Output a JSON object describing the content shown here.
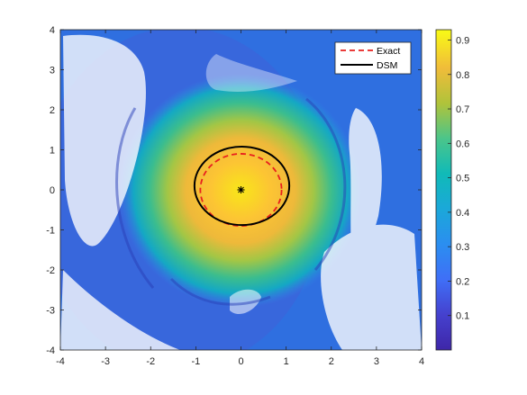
{
  "chart_data": {
    "type": "heatmap",
    "title": "",
    "xlabel": "",
    "ylabel": "",
    "xlim": [
      -4,
      4
    ],
    "ylim": [
      -4,
      4
    ],
    "x_ticks": [
      -4,
      -3,
      -2,
      -1,
      0,
      1,
      2,
      3,
      4
    ],
    "y_ticks": [
      -4,
      -3,
      -2,
      -1,
      0,
      1,
      2,
      3,
      4
    ],
    "grid": false,
    "colormap": "parula",
    "colorbar": {
      "range": [
        0,
        0.93
      ],
      "ticks": [
        0.1,
        0.2,
        0.3,
        0.4,
        0.5,
        0.6,
        0.7,
        0.8,
        0.9
      ]
    },
    "field": {
      "peak_value": 0.92,
      "peak_location": [
        0,
        0
      ],
      "description_hidden": true
    },
    "series": [
      {
        "name": "Exact",
        "style": "dashed",
        "color": "#e8201e",
        "shape": "circle",
        "center": [
          0,
          0
        ],
        "radius": 0.9
      },
      {
        "name": "DSM",
        "style": "solid",
        "color": "#000000",
        "shape": "ellipse",
        "center": [
          0.02,
          0.1
        ],
        "radius_x": 1.05,
        "radius_y": 0.98
      }
    ],
    "marker": {
      "symbol": "*",
      "x": 0,
      "y": 0,
      "color": "#000000"
    },
    "legend": {
      "placement": "top-right",
      "entries": [
        "Exact",
        "DSM"
      ]
    }
  }
}
